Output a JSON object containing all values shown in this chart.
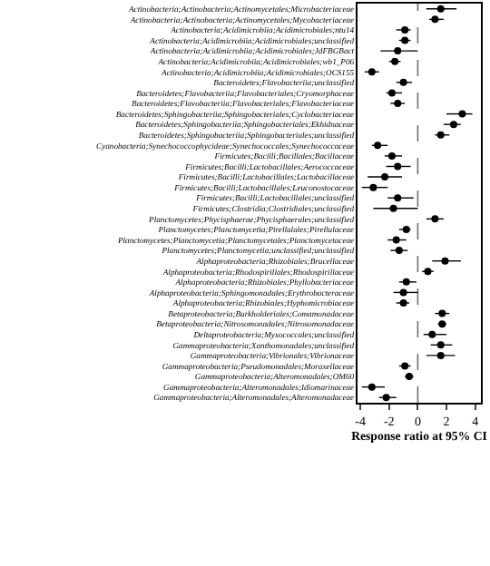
{
  "chart_data": {
    "type": "scatter",
    "orientation": "horizontal",
    "xlabel": "Response ratio at 95% CI",
    "categories": [
      "Actinobacteria;Actinobacteria;Actinomycetales;Microbacteriaceae",
      "Actinobacteria;Actinobacteria;Actinomycetales;Mycobacteriaceae",
      "Actinobacteria;Acidimicrobiia;Acidimicrobiales;ntu14",
      "Actinobacteria;Acidimicrobiia;Acidimicrobiales;unclassified",
      "Actinobacteria;Acidimicrobiia;Acidimicrobiales;JdFBGBact",
      "Actinobacteria;Acidimicrobiia;Acidimicrobiales;wb1_P06",
      "Actinobacteria;Acidimicrobiia;Acidimicrobiales;OCS155",
      "Bacteroidetes;Flavobacteriia;unclassified",
      "Bacteroidetes;Flavobacteriia;Flavobacteriales;Cryomorphaceae",
      "Bacteroidetes;Flavobacteriia;Flavobacteriales;Flavobacteriaceae",
      "Bacteroidetes;Sphingobacteriia;Sphingobacteriales;Cyclobacteriaceae",
      "Bacteroidetes;Sphingobacteriia;Sphingobacteriales;Ekhidnaceae",
      "Bacteroidetes;Sphingobacteriia;Sphingobacteriales;unclassified",
      "Cyanobacteria;Synechococcophycideae;Synechococcales;Synechococcaceae",
      "Firmicutes;Bacilli;Bacillales;Bacillaceae",
      "Firmicutes;Bacilli;Lactobacillales;Aerococcaceae",
      "Firmicutes;Bacilli;Lactobacillales;Lactobacillaceae",
      "Firmicutes;Bacilli;Lactobacillales;Leuconostocaceae",
      "Firmicutes;Bacilli;Lactobacillales;unclassified",
      "Firmicutes;Clostridia;Clostridiales;unclassified",
      "Planctomycetes;Phycisphaerae;Phycisphaerales;unclassified",
      "Planctomycetes;Planctomycetia;Pirellulales;Pirellulaceae",
      "Planctomycetes;Planctomycetia;Planctomycetales;Planctomycetaceae",
      "Planctomycetes;Planctomycetia;unclassified;unclassified",
      "Alphaproteobacteria;Rhizobiales;Brucellaceae",
      "Alphaproteobacteria;Rhodospirillales;Rhodospirillaceae",
      "Alphaproteobacteria;Rhizobiales;Phyllobacteriaceae",
      "Alphaproteobacteria;Sphingomonadales;Erythrobacteraceae",
      "Alphaproteobacteria;Rhizobiales;Hyphomicrobiaceae",
      "Betaproteobacteria;Burkholderiales;Comamonadaceae",
      "Betaproteobacteria;Nitrosomonadales;Nitrosomonadaceae",
      "Deltaproteobacteria;Myxococcales;unclassified",
      "Gammaproteobacteria;Xanthomonadales;unclassified",
      "Gammaproteobacteria;Vibrionales;Vibrionaceae",
      "Gammaproteobacteria;Pseudomonadales;Moraxellaceae",
      "Gammaproteobacteria;Alteromonadales;OM60",
      "Gammaproteobacteria;Alteromonadales;Idiomarinaceae",
      "Gammaproteobacteria;Alteromonadales;Alteromonadaceae"
    ],
    "values": [
      1.6,
      1.2,
      -0.9,
      -0.9,
      -1.4,
      -1.6,
      -3.2,
      -1.0,
      -1.8,
      -1.4,
      3.1,
      2.5,
      1.6,
      -2.8,
      -1.8,
      -1.4,
      -2.3,
      -3.1,
      -1.4,
      -1.7,
      1.2,
      -0.8,
      -1.5,
      -1.3,
      1.9,
      0.7,
      -0.8,
      -1.0,
      -1.0,
      1.7,
      1.7,
      1.0,
      1.6,
      1.6,
      -0.9,
      -0.6,
      -3.2,
      -2.2
    ],
    "errors": [
      [
        0.6,
        2.7
      ],
      [
        0.8,
        1.8
      ],
      [
        -1.5,
        -0.5
      ],
      [
        -1.3,
        -0.5
      ],
      [
        -2.6,
        0
      ],
      [
        -2.0,
        -1.2
      ],
      [
        -3.7,
        -2.7
      ],
      [
        -1.5,
        -0.4
      ],
      [
        -2.2,
        -1.1
      ],
      [
        -1.9,
        -0.9
      ],
      [
        2.0,
        3.8
      ],
      [
        1.8,
        3.0
      ],
      [
        1.2,
        2.2
      ],
      [
        -3.2,
        -2.1
      ],
      [
        -2.3,
        -1.1
      ],
      [
        -2.2,
        -0.5
      ],
      [
        -3.5,
        -1.1
      ],
      [
        -3.9,
        -2.1
      ],
      [
        -2.1,
        -0.3
      ],
      [
        -3.1,
        0
      ],
      [
        0.6,
        1.8
      ],
      [
        -1.3,
        -0.5
      ],
      [
        -2.1,
        -0.8
      ],
      [
        -1.9,
        -0.7
      ],
      [
        1.0,
        3.0
      ],
      [
        0.3,
        1.1
      ],
      [
        -1.3,
        -0.1
      ],
      [
        -1.7,
        0
      ],
      [
        -1.5,
        -0.6
      ],
      [
        1.2,
        2.2
      ],
      [
        1.4,
        2.0
      ],
      [
        0.4,
        2.0
      ],
      [
        0.9,
        2.4
      ],
      [
        0.6,
        2.6
      ],
      [
        -1.3,
        -0.5
      ],
      [
        -0.9,
        -0.3
      ],
      [
        -3.9,
        -2.3
      ],
      [
        -2.7,
        -1.5
      ]
    ],
    "color": "#000000",
    "marker": "circle",
    "xlim": [
      -4.2,
      4.4
    ],
    "xticks": [
      -4,
      -2,
      0,
      2,
      4
    ],
    "ref_lines": [
      {
        "axis": "x",
        "value": 0,
        "color": "#707070",
        "line_style": "dashed"
      }
    ],
    "grid": false,
    "legend": false
  }
}
